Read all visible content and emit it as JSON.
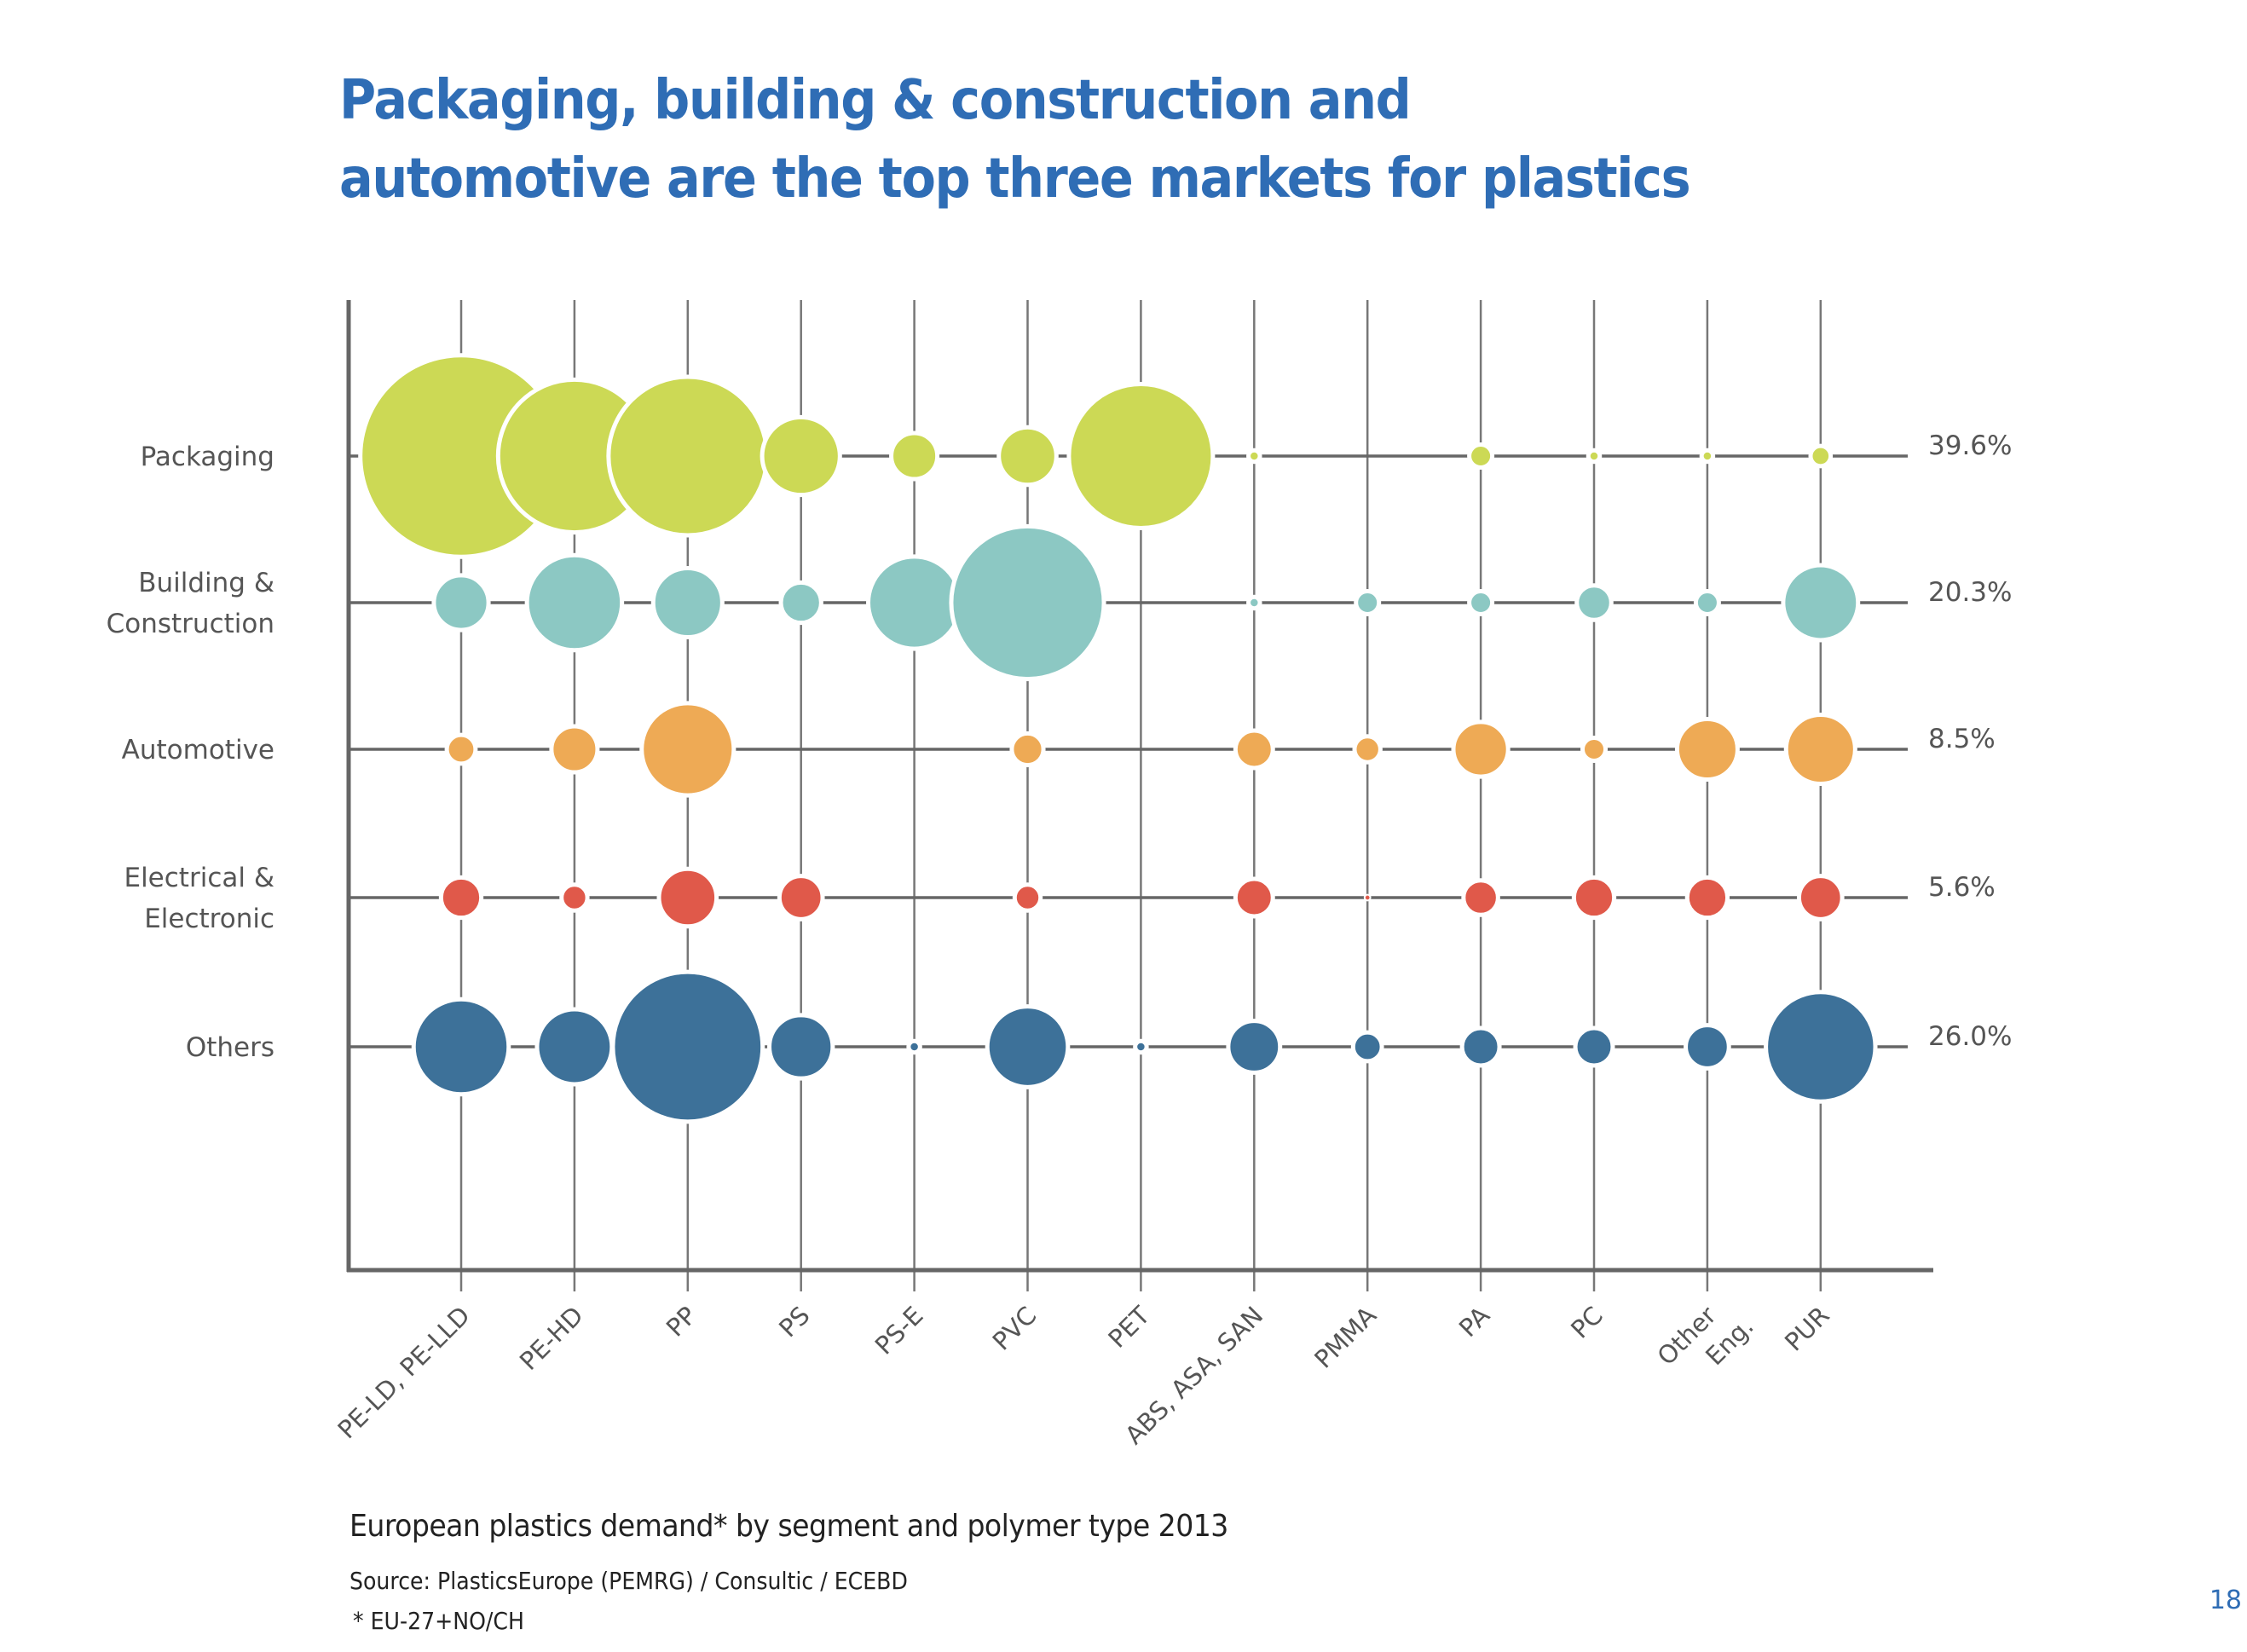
{
  "header": {
    "title_line1": "Packaging, building & construction and",
    "title_line2": "automotive are the top three markets for plastics"
  },
  "footer": {
    "caption": "European plastics demand* by segment and polymer type 2013",
    "source": "Source: PlasticsEurope (PEMRG) / Consultic / ECEBD",
    "note": "* EU-27+NO/CH",
    "page_number": "18"
  },
  "chart_data": {
    "type": "bubble-matrix",
    "title": "Packaging, building & construction and automotive are the top three markets for plastics",
    "subtitle": "European plastics demand* by segment and polymer type 2013",
    "xlabel": "",
    "ylabel": "",
    "grid": true,
    "size_units": "relative bubble radius (estimated, arbitrary units)",
    "categories": [
      "PE-LD, PE-LLD",
      "PE-HD",
      "PP",
      "PS",
      "PS-E",
      "PVC",
      "PET",
      "ABS, ASA, SAN",
      "PMMA",
      "PA",
      "PC",
      "Other Eng.",
      "PUR"
    ],
    "category_label_lines": [
      [
        "PE-LD, PE-LLD"
      ],
      [
        "PE-HD"
      ],
      [
        "PP"
      ],
      [
        "PS"
      ],
      [
        "PS-E"
      ],
      [
        "PVC"
      ],
      [
        "PET"
      ],
      [
        "ABS, ASA, SAN"
      ],
      [
        "PMMA"
      ],
      [
        "PA"
      ],
      [
        "PC"
      ],
      [
        "Other",
        "Eng."
      ],
      [
        "PUR"
      ]
    ],
    "series": [
      {
        "name": "Packaging",
        "label_lines": [
          "Packaging"
        ],
        "share": "39.6%",
        "color": "#ccd955",
        "values": [
          70,
          53,
          55,
          27,
          16,
          20,
          50,
          4,
          0,
          8,
          4,
          4,
          7
        ]
      },
      {
        "name": "Building & Construction",
        "label_lines": [
          "Building &",
          "Construction"
        ],
        "share": "20.3%",
        "color": "#8cc8c3",
        "values": [
          19,
          33,
          24,
          14,
          32,
          53,
          0,
          4,
          8,
          8,
          12,
          8,
          26
        ]
      },
      {
        "name": "Automotive",
        "label_lines": [
          "Automotive"
        ],
        "share": "8.5%",
        "color": "#eeaa55",
        "values": [
          10,
          16,
          32,
          0,
          0,
          11,
          0,
          13,
          9,
          19,
          8,
          21,
          24
        ]
      },
      {
        "name": "Electrical & Electronic",
        "label_lines": [
          "Electrical &",
          "Electronic"
        ],
        "share": "5.6%",
        "color": "#e0594a",
        "values": [
          14,
          9,
          20,
          15,
          0,
          9,
          0,
          13,
          2,
          12,
          14,
          14,
          15
        ]
      },
      {
        "name": "Others",
        "label_lines": [
          "Others"
        ],
        "share": "26.0%",
        "color": "#3d7199",
        "values": [
          33,
          26,
          52,
          22,
          4,
          28,
          4,
          18,
          10,
          13,
          13,
          15,
          38
        ]
      }
    ]
  }
}
